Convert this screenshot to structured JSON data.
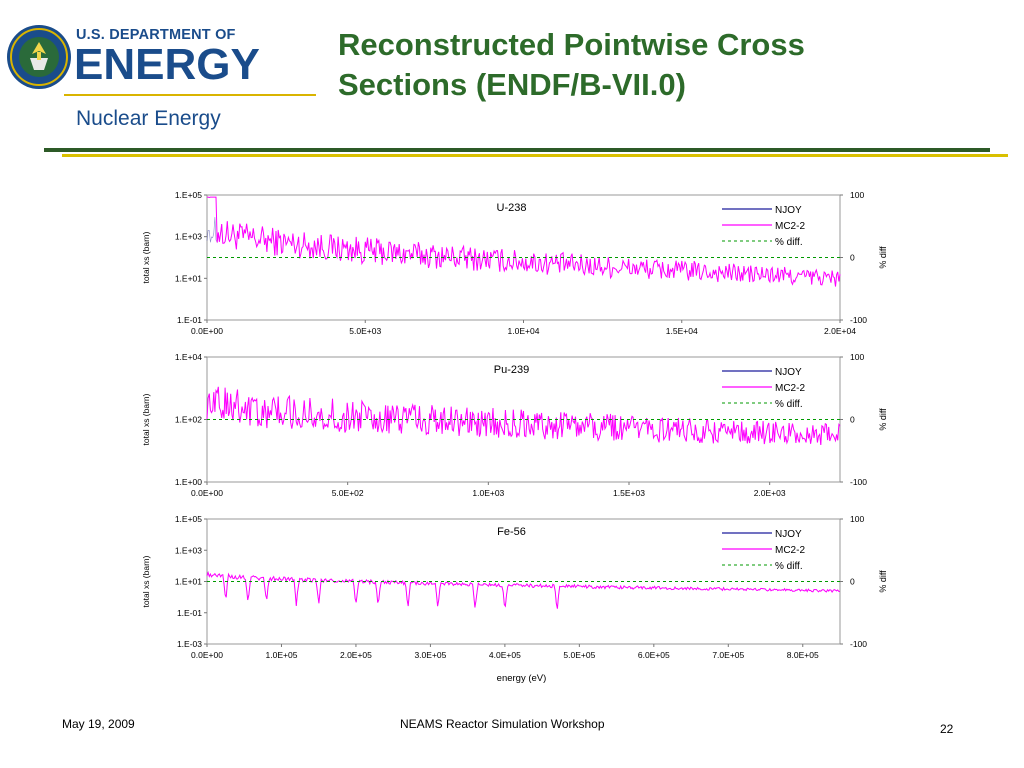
{
  "header": {
    "department": "U.S. DEPARTMENT OF",
    "energy": "ENERGY",
    "office": "Nuclear Energy",
    "seal_icon": "doe-seal-icon"
  },
  "slide": {
    "title_line1": "Reconstructed Pointwise Cross",
    "title_line2": "Sections (ENDF/B-VII.0)"
  },
  "footer": {
    "date": "May 19, 2009",
    "event": "NEAMS Reactor Simulation Workshop",
    "page": "22"
  },
  "colors": {
    "njoy": "#1c1c9c",
    "mc22": "#ff00ff",
    "diff": "#009900",
    "title_green": "#2d6b2a",
    "doe_blue": "#1a4c8b",
    "rule_green": "#2d5a27",
    "rule_gold": "#d9c000"
  },
  "chart_data": [
    {
      "type": "line",
      "title": "U-238",
      "xlabel": "",
      "ylabel": "total xs (barn)",
      "y2label": "% diff",
      "x_ticks": [
        "0.0E+00",
        "5.0E+03",
        "1.0E+04",
        "1.5E+04",
        "2.0E+04"
      ],
      "xlim": [
        0,
        20000
      ],
      "y_ticks": [
        "1.E+05",
        "1.E+03",
        "1.E+01",
        "1.E-01"
      ],
      "y_log_range": [
        -1,
        5
      ],
      "y2_ticks": [
        "100",
        "0",
        "-100"
      ],
      "y2lim": [
        -100,
        100
      ],
      "legend": [
        "NJOY",
        "MC2-2",
        "% diff."
      ],
      "legend_position": "top-right",
      "series": [
        {
          "name": "NJOY",
          "style": "solid"
        },
        {
          "name": "MC2-2",
          "style": "solid",
          "profile": {
            "xs_log_start": 3.5,
            "xs_log_end": 1.0,
            "spread_log": 1.2
          }
        },
        {
          "name": "% diff.",
          "style": "dashed",
          "value": 0
        }
      ]
    },
    {
      "type": "line",
      "title": "Pu-239",
      "xlabel": "",
      "ylabel": "total xs (barn)",
      "y2label": "% diff",
      "x_ticks": [
        "0.0E+00",
        "5.0E+02",
        "1.0E+03",
        "1.5E+03",
        "2.0E+03"
      ],
      "xlim": [
        0,
        2250
      ],
      "y_ticks": [
        "1.E+04",
        "1.E+02",
        "1.E+00"
      ],
      "y_log_range": [
        0,
        4
      ],
      "y2_ticks": [
        "100",
        "0",
        "-100"
      ],
      "y2lim": [
        -100,
        100
      ],
      "legend": [
        "NJOY",
        "MC2-2",
        "% diff."
      ],
      "legend_position": "top-right",
      "series": [
        {
          "name": "NJOY",
          "style": "solid"
        },
        {
          "name": "MC2-2",
          "style": "solid",
          "profile": {
            "xs_log_start": 2.6,
            "xs_log_end": 1.5,
            "spread_log": 1.0
          }
        },
        {
          "name": "% diff.",
          "style": "dashed",
          "value": 0
        }
      ]
    },
    {
      "type": "line",
      "title": "Fe-56",
      "xlabel": "energy (eV)",
      "ylabel": "total xs (barn)",
      "y2label": "% diff",
      "x_ticks": [
        "0.0E+00",
        "1.0E+05",
        "2.0E+05",
        "3.0E+05",
        "4.0E+05",
        "5.0E+05",
        "6.0E+05",
        "7.0E+05",
        "8.0E+05"
      ],
      "xlim": [
        0,
        850000
      ],
      "y_ticks": [
        "1.E+05",
        "1.E+03",
        "1.E+01",
        "1.E-01",
        "1.E-03"
      ],
      "y_log_range": [
        -3,
        5
      ],
      "y2_ticks": [
        "100",
        "0",
        "-100"
      ],
      "y2lim": [
        -100,
        100
      ],
      "legend": [
        "NJOY",
        "MC2-2",
        "% diff."
      ],
      "legend_position": "top-right",
      "series": [
        {
          "name": "NJOY",
          "style": "solid"
        },
        {
          "name": "MC2-2",
          "style": "solid",
          "profile": {
            "xs_log_start": 1.5,
            "xs_log_end": 0.4,
            "spread_log": 0.4,
            "dips": [
              25000,
              55000,
              80000,
              120000,
              150000,
              200000,
              230000,
              270000,
              310000,
              360000,
              400000,
              470000
            ]
          }
        },
        {
          "name": "% diff.",
          "style": "dashed",
          "value": 0
        }
      ]
    }
  ]
}
